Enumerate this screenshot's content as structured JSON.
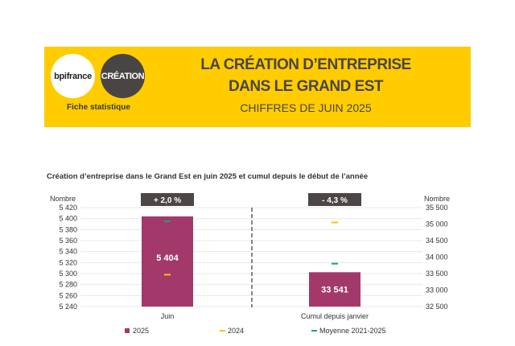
{
  "header": {
    "logo_left": "bpifrance",
    "logo_right": "CRÉATION",
    "tag": "Fiche statistique",
    "title_line1": "LA CRÉATION D’ENTREPRISE",
    "title_line2": "DANS LE GRAND EST",
    "subtitle": "CHIFFRES DE JUIN 2025"
  },
  "colors": {
    "banner": "#ffcc00",
    "series_2025": "#a3386b",
    "series_2024": "#ffc000",
    "series_avg": "#1aa37a",
    "badge": "#4d4646"
  },
  "chart_data": {
    "type": "bar",
    "title": "Création d’entreprise dans le Grand Est en juin 2025 et cumul depuis le début de l’année",
    "categories": [
      "Juin",
      "Cumul depuis janvier"
    ],
    "left_axis": {
      "label": "Nombre",
      "ylim": [
        5240,
        5420
      ],
      "ticks": [
        "5 420",
        "5 400",
        "5 380",
        "5 360",
        "5 340",
        "5 320",
        "5 300",
        "5 280",
        "5 260",
        "5 240"
      ]
    },
    "right_axis": {
      "label": "Nombre",
      "ylim": [
        32500,
        35500
      ],
      "ticks": [
        "35 500",
        "35 000",
        "34 500",
        "34 000",
        "33 500",
        "33 000",
        "32 500"
      ]
    },
    "series": [
      {
        "name": "2025",
        "values": [
          5404,
          33541
        ],
        "labels": [
          "5 404",
          "33 541"
        ]
      },
      {
        "name": "2024",
        "values": [
          5298,
          35050
        ]
      },
      {
        "name": "Moyenne 2021-2025",
        "values": [
          5395,
          33800
        ]
      }
    ],
    "badges": [
      "+ 2,0 %",
      "- 4,3 %"
    ],
    "legend_position": "bottom"
  }
}
